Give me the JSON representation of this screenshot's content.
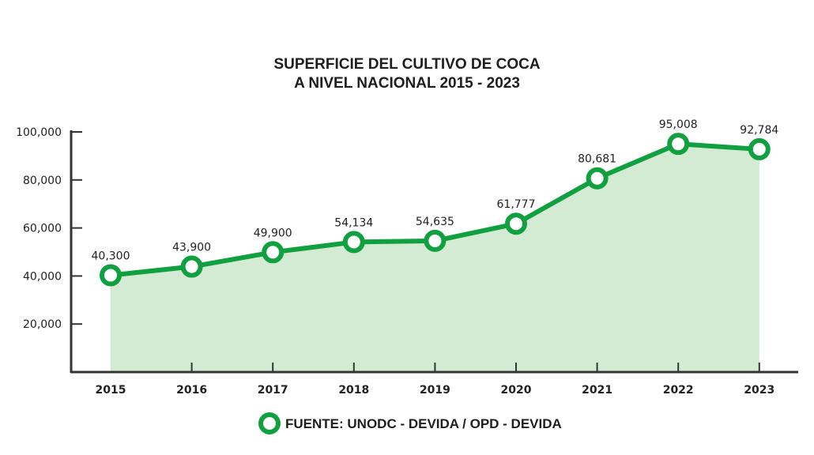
{
  "chart_data": {
    "type": "area",
    "title": [
      "SUPERFICIE DEL CULTIVO DE COCA",
      "A NIVEL NACIONAL 2015 - 2023"
    ],
    "categories": [
      "2015",
      "2016",
      "2017",
      "2018",
      "2019",
      "2020",
      "2021",
      "2022",
      "2023"
    ],
    "values": [
      40300,
      43900,
      49900,
      54134,
      54635,
      61777,
      80681,
      95008,
      92784
    ],
    "data_labels": [
      "40,300",
      "43,900",
      "49,900",
      "54,134",
      "54,635",
      "61,777",
      "80,681",
      "95,008",
      "92,784"
    ],
    "y_ticks": [
      20000,
      40000,
      60000,
      80000,
      100000
    ],
    "y_tick_labels": [
      "20,000",
      "40,000",
      "60,000",
      "80,000",
      "100,000"
    ],
    "ylim": [
      0,
      100000
    ],
    "xlabel": "",
    "ylabel": "",
    "grid": false,
    "legend": {
      "label": "FUENTE: UNODC - DEVIDA / OPD - DEVIDA",
      "position": "bottom-center"
    },
    "colors": {
      "line": "#10a040",
      "fill": "#d3ebd3",
      "marker_fill": "#ffffff",
      "axis": "#333333",
      "text": "#222222"
    }
  }
}
